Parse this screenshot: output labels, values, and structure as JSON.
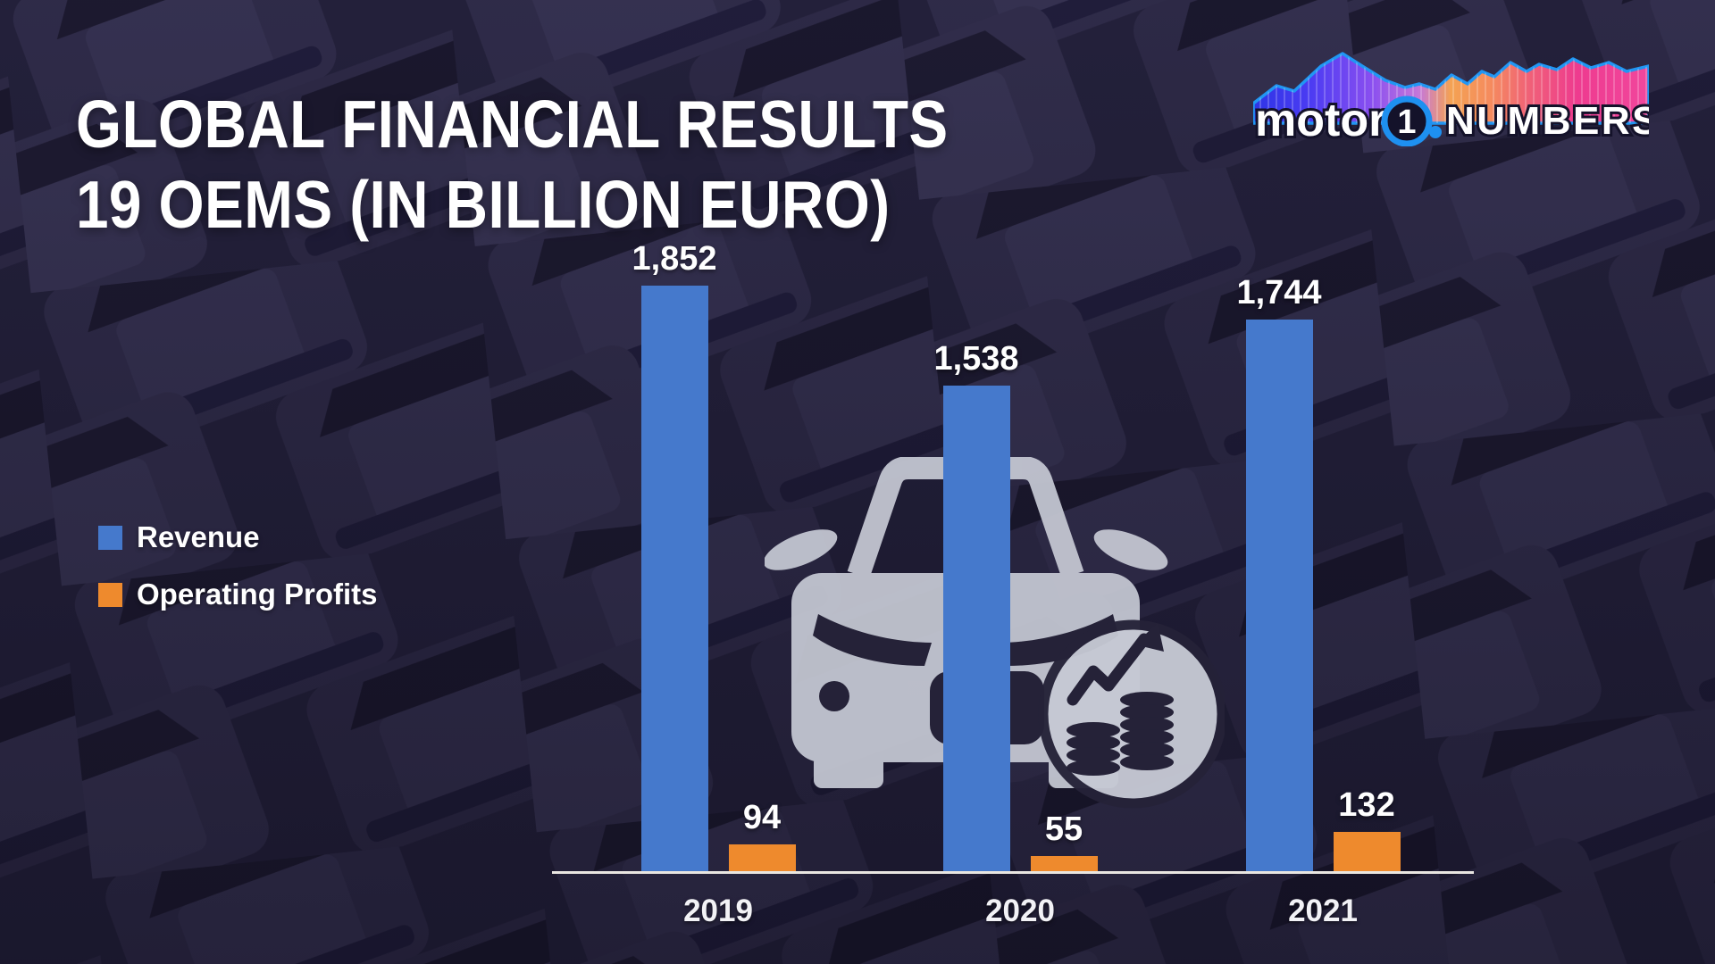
{
  "title": {
    "line1": "GLOBAL FINANCIAL RESULTS",
    "line2": "19 OEMS (IN BILLION EURO)"
  },
  "logo": {
    "brand": "motor",
    "number": "1",
    "suffix": "NUMBERS"
  },
  "legend": {
    "items": [
      {
        "label": "Revenue",
        "color": "#4579CC"
      },
      {
        "label": "Operating Profits",
        "color": "#EE8A2D"
      }
    ]
  },
  "chart_data": {
    "type": "bar",
    "title": "GLOBAL FINANCIAL RESULTS 19 OEMS (IN BILLION EURO)",
    "unit": "billion EUR",
    "categories": [
      "2019",
      "2020",
      "2021"
    ],
    "series": [
      {
        "name": "Revenue",
        "color": "#4579CC",
        "values": [
          1852,
          1538,
          1744
        ],
        "display_labels": [
          "1,852",
          "1,538",
          "1,744"
        ]
      },
      {
        "name": "Operating Profits",
        "color": "#EE8A2D",
        "values": [
          94,
          55,
          132
        ],
        "display_labels": [
          "94",
          "55",
          "132"
        ]
      }
    ],
    "ylim": [
      0,
      1900
    ],
    "grid": false,
    "value_labels": true,
    "legend_position": "middle-left"
  },
  "watermark_icon": "car-with-growth-chart-and-coins",
  "colors": {
    "background": "#272440",
    "revenue_bar": "#4579CC",
    "profit_bar": "#EE8A2D",
    "axis_line": "#E9E6E1",
    "text": "#FFFFFF",
    "logo_ring": "#1E90F0"
  }
}
